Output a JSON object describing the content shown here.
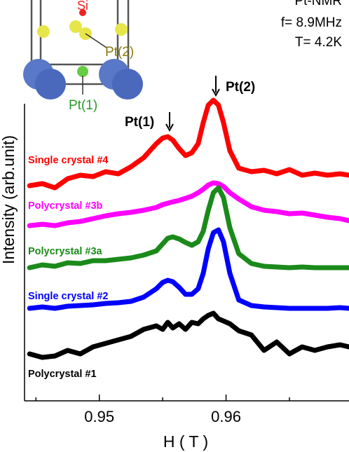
{
  "chart_data": {
    "type": "line",
    "xlabel": "H ( T )",
    "ylabel": "Intensity (arb.unit)",
    "x": [
      0.9445,
      0.9455,
      0.9465,
      0.9475,
      0.9485,
      0.9495,
      0.9505,
      0.9515,
      0.9525,
      0.9535,
      0.9545,
      0.955,
      0.9554,
      0.9558,
      0.9563,
      0.9568,
      0.9573,
      0.9578,
      0.9582,
      0.9586,
      0.959,
      0.9594,
      0.9598,
      0.9603,
      0.961,
      0.962,
      0.963,
      0.964,
      0.965,
      0.966,
      0.967,
      0.968,
      0.969,
      0.9697
    ],
    "xlim": [
      0.9441,
      0.9697
    ],
    "xticks": [
      0.95,
      0.96
    ],
    "xminorticks": [
      0.945,
      0.955,
      0.965
    ],
    "ylim": [
      0,
      432
    ],
    "series": [
      {
        "name": "Single crystal #4",
        "color": "#ff0000",
        "values": [
          307,
          310,
          304,
          317,
          322,
          320,
          327,
          324,
          334,
          347,
          367,
          375,
          377,
          372,
          360,
          350,
          354,
          367,
          397,
          422,
          429,
          422,
          397,
          357,
          332,
          327,
          329,
          324,
          330,
          322,
          325,
          322,
          324,
          322
        ]
      },
      {
        "name": "Polycrystal #3b",
        "color": "#ff00ff",
        "values": [
          250,
          252,
          250,
          254,
          256,
          260,
          264,
          267,
          269,
          272,
          276,
          280,
          282,
          284,
          286,
          289,
          292,
          297,
          302,
          308,
          311,
          310,
          306,
          297,
          288,
          277,
          272,
          270,
          267,
          268,
          265,
          262,
          260,
          257
        ]
      },
      {
        "name": "Polycrystal #3a",
        "color": "#1a8a1a",
        "values": [
          190,
          194,
          192,
          197,
          196,
          200,
          200,
          202,
          204,
          208,
          214,
          224,
          232,
          234,
          231,
          226,
          222,
          227,
          242,
          272,
          297,
          304,
          290,
          247,
          210,
          196,
          192,
          191,
          190,
          191,
          190,
          190,
          190,
          190
        ]
      },
      {
        "name": "Single crystal #2",
        "color": "#0000ff",
        "values": [
          132,
          134,
          132,
          135,
          136,
          137,
          139,
          140,
          142,
          148,
          160,
          169,
          172,
          170,
          162,
          152,
          152,
          160,
          182,
          217,
          240,
          244,
          227,
          182,
          144,
          136,
          134,
          133,
          132,
          132,
          132,
          132,
          133,
          132
        ]
      },
      {
        "name": "Polycrystal #1",
        "color": "#000000",
        "values": [
          67,
          62,
          64,
          72,
          67,
          77,
          82,
          87,
          92,
          102,
          107,
          102,
          112,
          104,
          110,
          102,
          112,
          110,
          117,
          122,
          125,
          117,
          114,
          110,
          100,
          94,
          72,
          84,
          67,
          77,
          72,
          77,
          80,
          77
        ]
      }
    ],
    "peak_labels": [
      "Pt(1)",
      "Pt(2)"
    ],
    "conditions": [
      "Pt-NMR",
      "f= 8.9MHz",
      "T= 4.2K"
    ],
    "inset_labels": [
      "Si",
      "Pt(2)",
      "Pt(1)"
    ]
  }
}
